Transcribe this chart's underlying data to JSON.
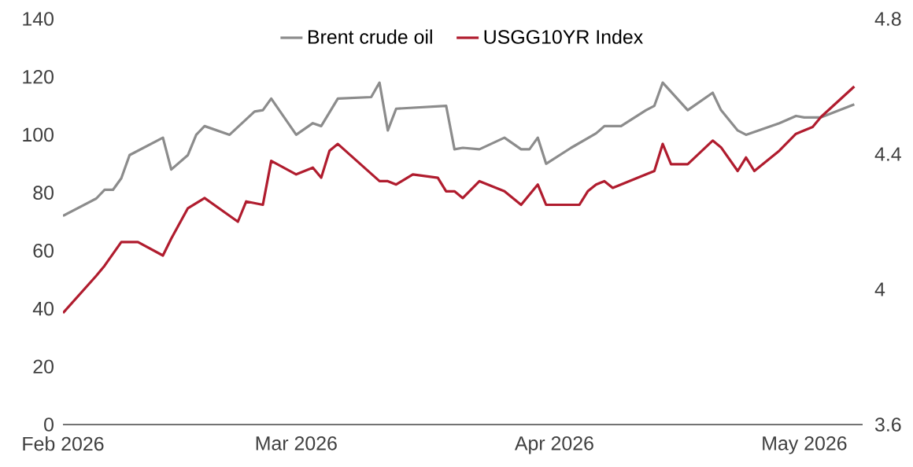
{
  "chart_data": {
    "type": "line",
    "x": [
      "2026-02-01",
      "2026-02-05",
      "2026-02-06",
      "2026-02-07",
      "2026-02-08",
      "2026-02-09",
      "2026-02-13",
      "2026-02-14",
      "2026-02-16",
      "2026-02-17",
      "2026-02-18",
      "2026-02-21",
      "2026-02-24",
      "2026-02-25",
      "2026-02-26",
      "2026-03-01",
      "2026-03-03",
      "2026-03-04",
      "2026-03-06",
      "2026-03-10",
      "2026-03-11",
      "2026-03-12",
      "2026-03-13",
      "2026-03-19",
      "2026-03-20",
      "2026-03-21",
      "2026-03-23",
      "2026-03-26",
      "2026-03-28",
      "2026-03-29",
      "2026-03-30",
      "2026-03-31",
      "2026-04-03",
      "2026-04-06",
      "2026-04-07",
      "2026-04-09",
      "2026-04-12",
      "2026-04-13",
      "2026-04-14",
      "2026-04-17",
      "2026-04-20",
      "2026-04-21",
      "2026-04-23",
      "2026-04-24",
      "2026-04-28",
      "2026-04-30",
      "2026-05-01",
      "2026-05-03",
      "2026-05-07"
    ],
    "series": [
      {
        "name": "Brent crude oil",
        "color": "#8c8c8c",
        "values": [
          72,
          78,
          81,
          81,
          85,
          93,
          99,
          88,
          93,
          100,
          103,
          100,
          108,
          108.5,
          112.5,
          100,
          104,
          103,
          112.5,
          113,
          118,
          101.5,
          109,
          110,
          95,
          95.5,
          95,
          99,
          95,
          95,
          99,
          90,
          95.5,
          100.5,
          103,
          103,
          108.5,
          110,
          118,
          108.5,
          114.5,
          108.5,
          101.5,
          100,
          104,
          106.5,
          106,
          106,
          110.5
        ]
      },
      {
        "name": "USGG10YR Index",
        "color": "#b01c2e",
        "axis": "y2",
        "x": [
          "2026-02-01",
          "2026-02-05",
          "2026-02-06",
          "2026-02-08",
          "2026-02-10",
          "2026-02-13",
          "2026-02-14",
          "2026-02-16",
          "2026-02-18",
          "2026-02-22",
          "2026-02-23",
          "2026-02-25",
          "2026-02-26",
          "2026-03-01",
          "2026-03-03",
          "2026-03-04",
          "2026-03-05",
          "2026-03-06",
          "2026-03-11",
          "2026-03-12",
          "2026-03-13",
          "2026-03-15",
          "2026-03-18",
          "2026-03-19",
          "2026-03-20",
          "2026-03-21",
          "2026-03-23",
          "2026-03-26",
          "2026-03-28",
          "2026-03-30",
          "2026-03-31",
          "2026-04-04",
          "2026-04-05",
          "2026-04-06",
          "2026-04-07",
          "2026-04-08",
          "2026-04-12",
          "2026-04-13",
          "2026-04-14",
          "2026-04-15",
          "2026-04-17",
          "2026-04-20",
          "2026-04-21",
          "2026-04-23",
          "2026-04-24",
          "2026-04-25",
          "2026-04-28",
          "2026-04-30",
          "2026-05-02",
          "2026-05-03",
          "2026-05-07"
        ],
        "values": [
          3.93,
          4.04,
          4.07,
          4.14,
          4.14,
          4.1,
          4.15,
          4.24,
          4.27,
          4.2,
          4.26,
          4.25,
          4.38,
          4.34,
          4.36,
          4.33,
          4.41,
          4.43,
          4.32,
          4.32,
          4.31,
          4.34,
          4.33,
          4.29,
          4.29,
          4.27,
          4.32,
          4.29,
          4.25,
          4.31,
          4.25,
          4.25,
          4.29,
          4.31,
          4.32,
          4.3,
          4.34,
          4.35,
          4.43,
          4.37,
          4.37,
          4.44,
          4.42,
          4.35,
          4.39,
          4.35,
          4.41,
          4.46,
          4.48,
          4.51,
          4.6
        ]
      }
    ],
    "xlim": [
      "2026-02-01",
      "2026-05-08"
    ],
    "xticks": [
      {
        "value": "2026-02-01",
        "label": "Feb 2026"
      },
      {
        "value": "2026-03-01",
        "label": "Mar 2026"
      },
      {
        "value": "2026-04-01",
        "label": "Apr 2026"
      },
      {
        "value": "2026-05-01",
        "label": "May 2026"
      }
    ],
    "ylim": [
      0,
      140
    ],
    "yticks": [
      0,
      20,
      40,
      60,
      80,
      100,
      120,
      140
    ],
    "y2lim": [
      3.6,
      4.8
    ],
    "y2ticks": [
      3.6,
      4,
      4.4,
      4.8
    ],
    "grid": false,
    "legend": "top"
  }
}
